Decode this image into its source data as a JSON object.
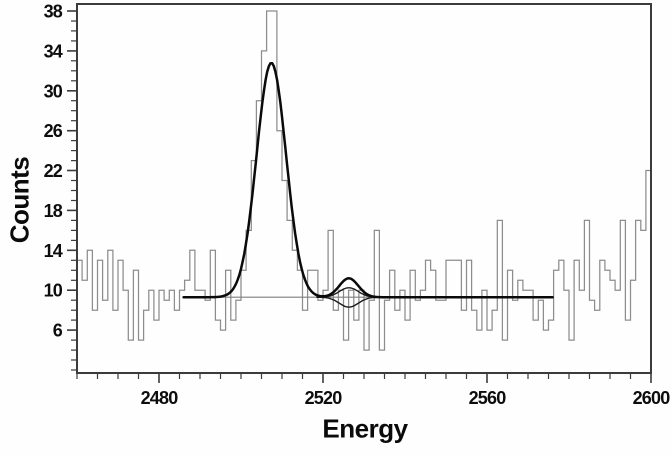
{
  "chart_data": {
    "type": "bar",
    "subtype": "step-histogram-with-gaussian-fit",
    "title": "",
    "xlabel": "Energy",
    "ylabel": "Counts",
    "xlim": [
      2460,
      2600
    ],
    "ylim": [
      1.7,
      38.7
    ],
    "x_major_ticks": [
      2480,
      2520,
      2560,
      2600
    ],
    "x_minor_step": 5,
    "y_major_ticks": [
      6,
      10,
      14,
      18,
      22,
      26,
      30,
      34,
      38
    ],
    "y_minor_step": 1,
    "grid": false,
    "legend_position": "none",
    "bin_start": 2460,
    "bin_width": 1.25,
    "counts": [
      13,
      11,
      14,
      8,
      13,
      9,
      14,
      8,
      13,
      10,
      5,
      12,
      5,
      8,
      10,
      7,
      10,
      9,
      10,
      8,
      10,
      11,
      14,
      10,
      10,
      9,
      14,
      7,
      6,
      12,
      7,
      9,
      12,
      16,
      23,
      29,
      34,
      38,
      38,
      26,
      21,
      17,
      14,
      12,
      8,
      12,
      12,
      9,
      10,
      16,
      8,
      10,
      5,
      10,
      7,
      10,
      4,
      9,
      16,
      4,
      9,
      12,
      8,
      10,
      7,
      12,
      9,
      10,
      13,
      12,
      9,
      9,
      13,
      13,
      13,
      8,
      13,
      8,
      6,
      10,
      6,
      8,
      17,
      5,
      12,
      9,
      11,
      10,
      10,
      7,
      9,
      6,
      7,
      12,
      13,
      10,
      5,
      13,
      10,
      17,
      9,
      8,
      13,
      12,
      11,
      10,
      17,
      7,
      11,
      17,
      16,
      22
    ],
    "fit": {
      "baseline": 9.3,
      "baseline_range": [
        2486,
        2576
      ],
      "main_curve": {
        "range": [
          2486,
          2576
        ],
        "peaks": [
          {
            "center": 2507.4,
            "amplitude": 23.5,
            "sigma": 3.6
          },
          {
            "center": 2526.3,
            "amplitude": 1.9,
            "sigma": 2.3
          }
        ]
      },
      "secondary_curves": [
        {
          "range": [
            2518.5,
            2535.5
          ],
          "peaks": [
            {
              "center": 2526.3,
              "amplitude": 0.95,
              "sigma": 2.3
            }
          ]
        },
        {
          "range": [
            2518.5,
            2535.5
          ],
          "peaks": [
            {
              "center": 2526.3,
              "amplitude": -1.0,
              "sigma": 2.3
            }
          ]
        }
      ]
    },
    "colors": {
      "histogram": "#8d8d8d",
      "fit": "#0a0a0a",
      "secondary": "#1c1c1c",
      "baseline": "#7e7e7e",
      "axis": "#3b3b3b",
      "tick_text": "#0d0d0d",
      "background": "#fefefe"
    }
  }
}
